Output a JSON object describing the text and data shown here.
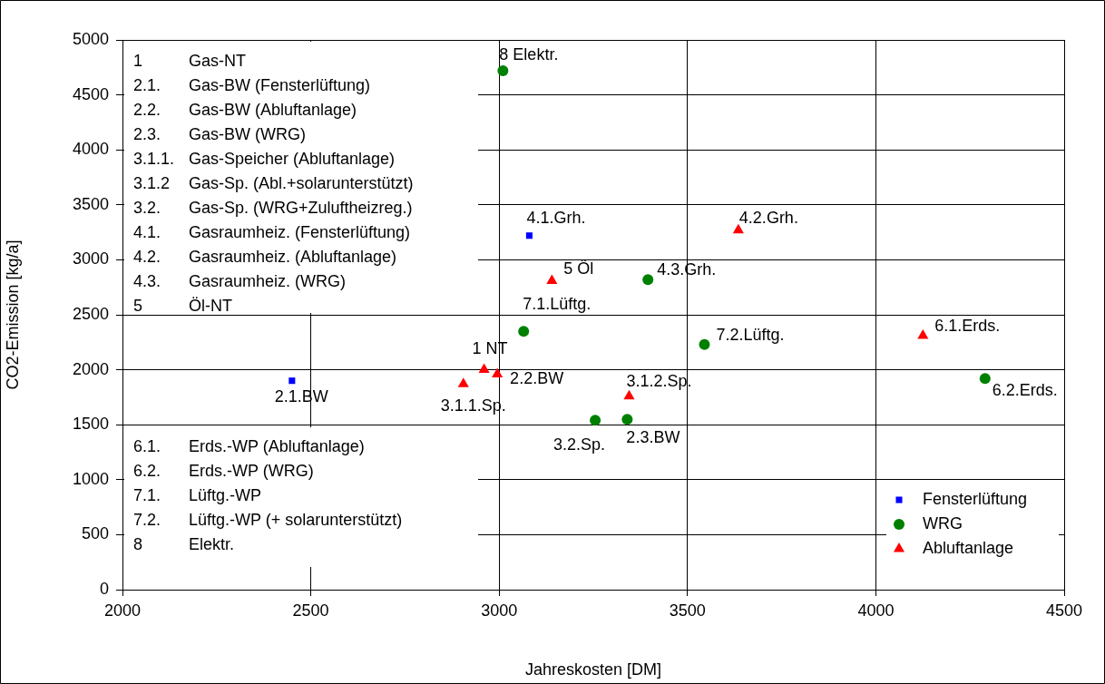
{
  "chart_data": {
    "type": "scatter",
    "xlabel": "Jahreskosten [DM]",
    "ylabel": "CO2-Emission [kg/a]",
    "xlim": [
      2000,
      4500
    ],
    "xticks": [
      2000,
      2500,
      3000,
      3500,
      4000,
      4500
    ],
    "ylim": [
      0,
      5000
    ],
    "yticks": [
      0,
      500,
      1000,
      1500,
      2000,
      2500,
      3000,
      3500,
      4000,
      4500,
      5000
    ],
    "grid": true,
    "legend": "bottom right",
    "series": [
      {
        "name": "Fensterlüftung",
        "color": "#0000ff",
        "marker": "square",
        "x": [
          2450,
          3080
        ],
        "values": [
          1900,
          3220
        ]
      },
      {
        "name": "WRG",
        "color": "#008000",
        "marker": "circle",
        "x": [
          3010,
          3065,
          3395,
          3545,
          4290,
          3255,
          3340
        ],
        "values": [
          4720,
          2350,
          2820,
          2230,
          1920,
          1540,
          1550
        ]
      },
      {
        "name": "Abluftanlage",
        "color": "#ff0000",
        "marker": "triangle",
        "x": [
          2960,
          2995,
          2905,
          3345,
          3140,
          3635,
          4125
        ],
        "values": [
          2000,
          1960,
          1870,
          1760,
          2810,
          3270,
          2310
        ]
      }
    ],
    "annotations": [
      "1 Gas-NT\n2.1. Gas-BW (Fensterlüftung)\n2.2. Gas-BW (Abluftanlage)\n2.3. Gas-BW (WRG)\n3.1.1. Gas-Speicher (Abluftanlage)\n3.1.2 Gas-Sp. (Abl.+solarunterstützt)\n3.2. Gas-Sp. (WRG+Zuluftheizreg.)\n4.1. Gasraumheiz. (Fensterlüftung)\n4.2. Gasraumheiz. (Abluftanlage)\n4.3. Gasraumheiz. (WRG)\n5 Öl-NT",
      "6.1. Erds.-WP (Abluftanlage)\n6.2. Erds.-WP (WRG)\n7.1. Lüftg.-WP\n7.2. Lüftg.-WP (+ solarunterstützt)\n8 Elektr.",
      {
        "text": "1 NT",
        "x": 2960,
        "y": 2000
      },
      {
        "text": "2.1.BW",
        "x": 2450,
        "y": 1900
      },
      {
        "text": "2.2.BW",
        "x": 2995,
        "y": 1960
      },
      {
        "text": "2.3.BW",
        "x": 3340,
        "y": 1550
      },
      {
        "text": "3.1.1.Sp.",
        "x": 2905,
        "y": 1870
      },
      {
        "text": "3.1.2.Sp.",
        "x": 3345,
        "y": 1760
      },
      {
        "text": "3.2.Sp.",
        "x": 3255,
        "y": 1540
      },
      {
        "text": "4.1.Grh.",
        "x": 3080,
        "y": 3220
      },
      {
        "text": "4.2.Grh.",
        "x": 3635,
        "y": 3270
      },
      {
        "text": "4.3.Grh.",
        "x": 3395,
        "y": 2820
      },
      {
        "text": "5 Öl",
        "x": 3140,
        "y": 2810
      },
      {
        "text": "6.1.Erds.",
        "x": 4125,
        "y": 2310
      },
      {
        "text": "6.2.Erds.",
        "x": 4290,
        "y": 1920
      },
      {
        "text": "7.1.Lüftg.",
        "x": 3065,
        "y": 2350
      },
      {
        "text": "7.2.Lüftg.",
        "x": 3545,
        "y": 2230
      },
      {
        "text": "8 Elektr.",
        "x": 3010,
        "y": 4720
      }
    ]
  }
}
